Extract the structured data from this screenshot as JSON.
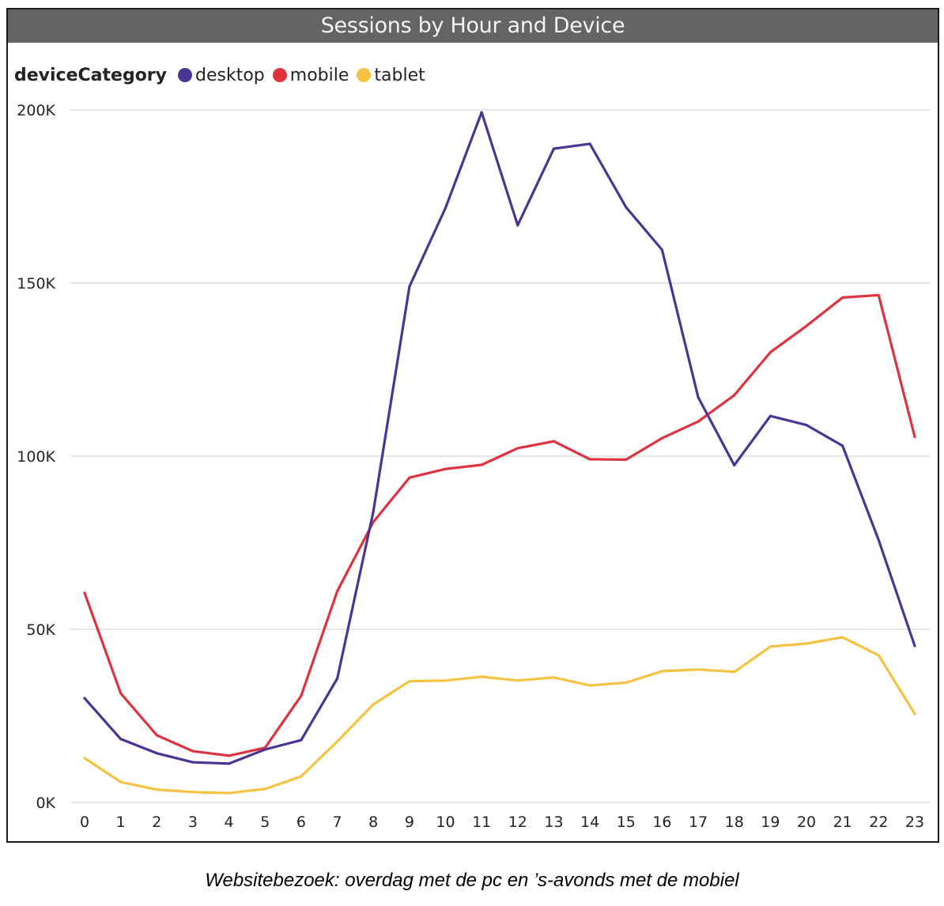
{
  "chart_data": {
    "type": "line",
    "title": "Sessions by Hour and Device",
    "legend_title": "deviceCategory",
    "legend_position": "top-left",
    "xlabel": "",
    "ylabel": "",
    "x": [
      0,
      1,
      2,
      3,
      4,
      5,
      6,
      7,
      8,
      9,
      10,
      11,
      12,
      13,
      14,
      15,
      16,
      17,
      18,
      19,
      20,
      21,
      22,
      23
    ],
    "x_tick_labels": [
      "0",
      "1",
      "2",
      "3",
      "4",
      "5",
      "6",
      "7",
      "8",
      "9",
      "10",
      "11",
      "12",
      "13",
      "14",
      "15",
      "16",
      "17",
      "18",
      "19",
      "20",
      "21",
      "22",
      "23"
    ],
    "ylim": [
      0,
      200000
    ],
    "y_ticks": [
      0,
      50000,
      100000,
      150000,
      200000
    ],
    "y_tick_labels": [
      "0K",
      "50K",
      "100K",
      "150K",
      "200K"
    ],
    "grid": "horizontal",
    "series": [
      {
        "name": "desktop",
        "color": "#4B3494",
        "values": [
          30100,
          18300,
          14200,
          11600,
          11200,
          15300,
          18000,
          35800,
          84000,
          149000,
          171700,
          199300,
          166700,
          188800,
          190200,
          171900,
          159600,
          117000,
          97400,
          111600,
          109000,
          103000,
          75800,
          45200
        ]
      },
      {
        "name": "mobile",
        "color": "#DE333F",
        "values": [
          60500,
          31500,
          19400,
          14800,
          13500,
          15800,
          30800,
          61000,
          81000,
          93800,
          96300,
          97500,
          102300,
          104300,
          99100,
          99000,
          105200,
          110000,
          117600,
          130000,
          137600,
          145800,
          146500,
          105600
        ]
      },
      {
        "name": "tablet",
        "color": "#F5C242",
        "values": [
          12800,
          5900,
          3700,
          3000,
          2700,
          3900,
          7500,
          17600,
          28300,
          35000,
          35200,
          36300,
          35200,
          36100,
          33800,
          34600,
          37900,
          38400,
          37700,
          45000,
          45900,
          47700,
          42500,
          25600
        ]
      }
    ]
  },
  "caption": "Websitebezoek: overdag met de pc en ’s-avonds met de mobiel",
  "colors": {
    "title_bar": "#646464",
    "gridline": "#e6e6e6",
    "axis_text": "#252423"
  }
}
